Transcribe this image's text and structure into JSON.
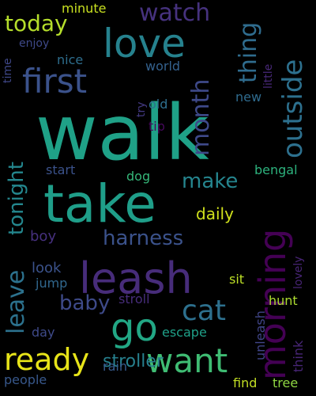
{
  "background": "#000000",
  "words": [
    {
      "text": "walk",
      "color": "#1fa187"
    },
    {
      "text": "take",
      "color": "#1f9e89"
    },
    {
      "text": "leash",
      "color": "#472c7a"
    },
    {
      "text": "love",
      "color": "#26828e"
    },
    {
      "text": "go",
      "color": "#22a785"
    },
    {
      "text": "morning",
      "color": "#440154"
    },
    {
      "text": "first",
      "color": "#3b528b"
    },
    {
      "text": "want",
      "color": "#3fbc73"
    },
    {
      "text": "ready",
      "color": "#e7e419"
    },
    {
      "text": "outside",
      "color": "#2d708e"
    },
    {
      "text": "cat",
      "color": "#2d708e"
    },
    {
      "text": "leave",
      "color": "#2c728e"
    },
    {
      "text": "month",
      "color": "#3e4989"
    },
    {
      "text": "watch",
      "color": "#46327e"
    },
    {
      "text": "thing",
      "color": "#2f6c8e"
    },
    {
      "text": "today",
      "color": "#b5de2b"
    },
    {
      "text": "tonight",
      "color": "#24878e"
    },
    {
      "text": "make",
      "color": "#25858e"
    },
    {
      "text": "harness",
      "color": "#3b528b"
    },
    {
      "text": "baby",
      "color": "#3e4a89"
    },
    {
      "text": "stroller",
      "color": "#27808e"
    },
    {
      "text": "daily",
      "color": "#d0e11c"
    },
    {
      "text": "look",
      "color": "#3b528b"
    },
    {
      "text": "boy",
      "color": "#46307e"
    },
    {
      "text": "stroll",
      "color": "#472d7b"
    },
    {
      "text": "hunt",
      "color": "#addc30"
    },
    {
      "text": "jump",
      "color": "#31688e"
    },
    {
      "text": "day",
      "color": "#3e4a89"
    },
    {
      "text": "escape",
      "color": "#1fa088"
    },
    {
      "text": "rain",
      "color": "#375b8d"
    },
    {
      "text": "people",
      "color": "#38588c"
    },
    {
      "text": "find",
      "color": "#c2df23"
    },
    {
      "text": "tree",
      "color": "#90d743"
    },
    {
      "text": "sit",
      "color": "#bddf26"
    },
    {
      "text": "lovely",
      "color": "#482576"
    },
    {
      "text": "think",
      "color": "#482677"
    },
    {
      "text": "unleash",
      "color": "#404588"
    },
    {
      "text": "bengal",
      "color": "#2db27d"
    },
    {
      "text": "dog",
      "color": "#35b779"
    },
    {
      "text": "start",
      "color": "#3b528b"
    },
    {
      "text": "tip",
      "color": "#46085c"
    },
    {
      "text": "old",
      "color": "#2e6f8e"
    },
    {
      "text": "new",
      "color": "#2f6b8e"
    },
    {
      "text": "try",
      "color": "#443a83"
    },
    {
      "text": "world",
      "color": "#34618d"
    },
    {
      "text": "nice",
      "color": "#2e6e8e"
    },
    {
      "text": "enjoy",
      "color": "#3e4989"
    },
    {
      "text": "time",
      "color": "#3f4889"
    },
    {
      "text": "minute",
      "color": "#c8e020"
    },
    {
      "text": "little",
      "color": "#482878"
    }
  ]
}
